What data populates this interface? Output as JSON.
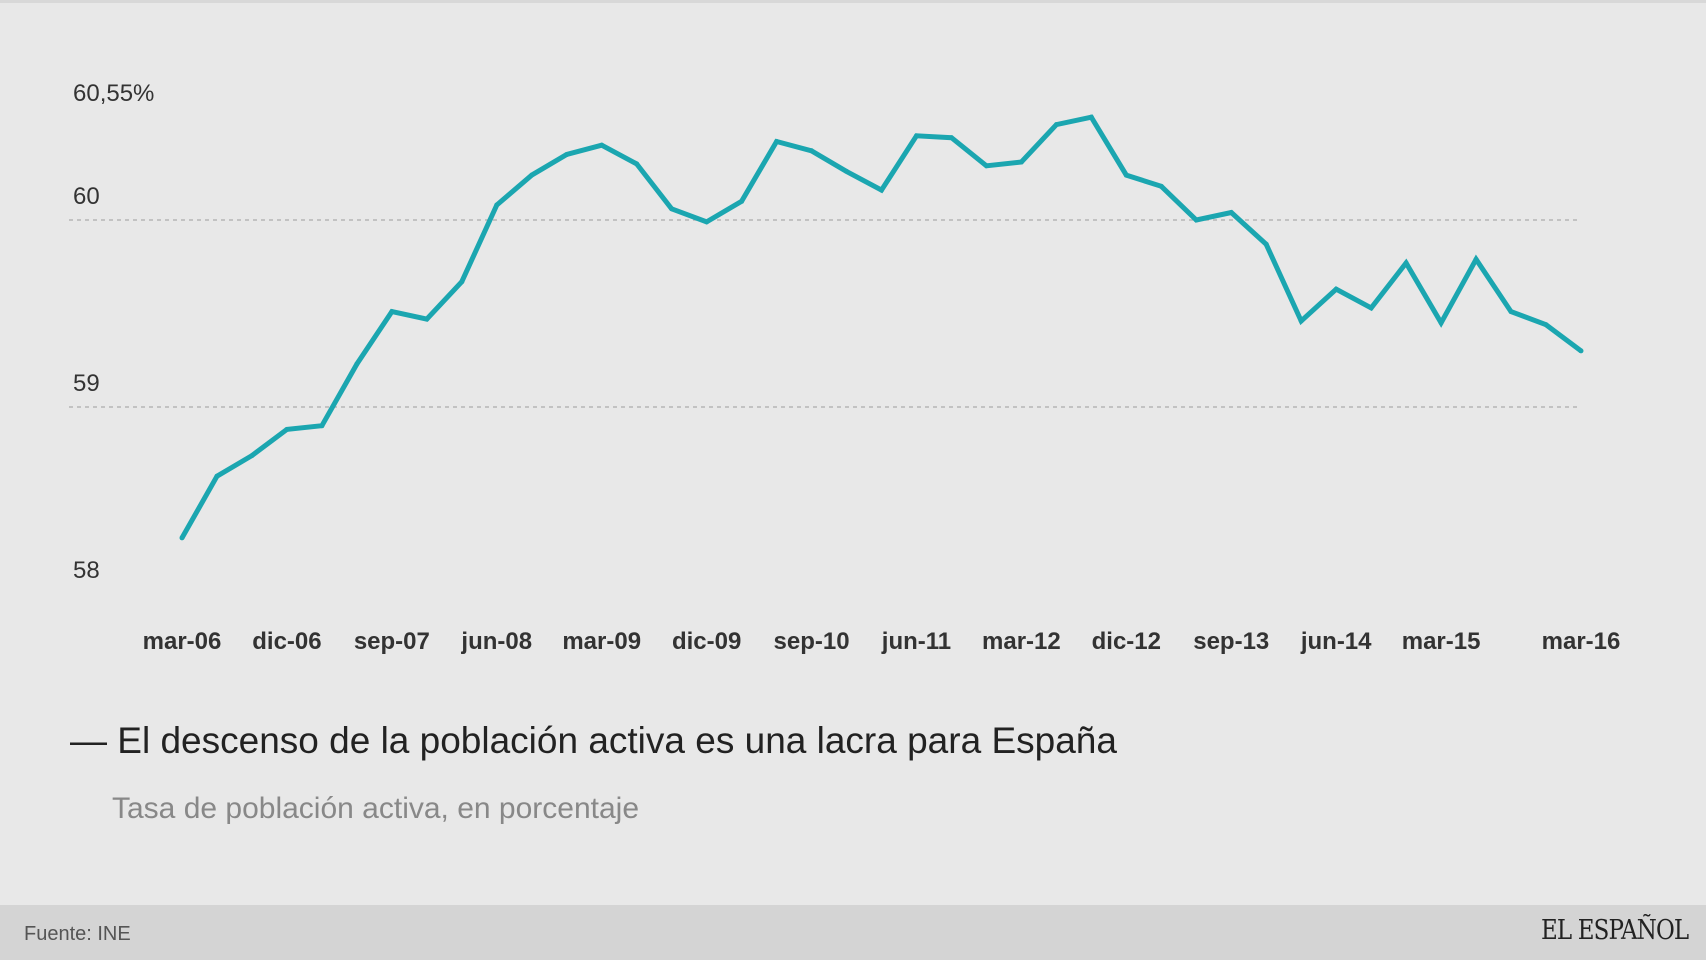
{
  "chart_data": {
    "type": "line",
    "title": "El descenso de la población activa es una lacra para España",
    "subtitle": "Tasa de población activa, en porcentaje",
    "xlabel": "",
    "ylabel": "",
    "ylim": [
      58,
      60.55
    ],
    "y_ticks": [
      {
        "value": 58,
        "label": "58"
      },
      {
        "value": 59,
        "label": "59"
      },
      {
        "value": 60,
        "label": "60"
      },
      {
        "value": 60.55,
        "label": "60,55%"
      }
    ],
    "gridlines": [
      59,
      60
    ],
    "x_tick_labels": [
      {
        "index": 0,
        "label": "mar-06"
      },
      {
        "index": 3,
        "label": "dic-06"
      },
      {
        "index": 6,
        "label": "sep-07"
      },
      {
        "index": 9,
        "label": "jun-08"
      },
      {
        "index": 12,
        "label": "mar-09"
      },
      {
        "index": 15,
        "label": "dic-09"
      },
      {
        "index": 18,
        "label": "sep-10"
      },
      {
        "index": 21,
        "label": "jun-11"
      },
      {
        "index": 24,
        "label": "mar-12"
      },
      {
        "index": 27,
        "label": "dic-12"
      },
      {
        "index": 30,
        "label": "sep-13"
      },
      {
        "index": 33,
        "label": "jun-14"
      },
      {
        "index": 36,
        "label": "mar-15"
      },
      {
        "index": 40,
        "label": "mar-16"
      }
    ],
    "series": [
      {
        "name": "Tasa de población activa",
        "color": "#1ba6b0",
        "values": [
          58.3,
          58.63,
          58.74,
          58.88,
          58.9,
          59.23,
          59.51,
          59.47,
          59.67,
          60.08,
          60.24,
          60.35,
          60.4,
          60.3,
          60.06,
          59.99,
          60.1,
          60.42,
          60.37,
          60.26,
          60.16,
          60.45,
          60.44,
          60.29,
          60.31,
          60.51,
          60.55,
          60.24,
          60.18,
          60.0,
          60.04,
          59.87,
          59.46,
          59.63,
          59.53,
          59.77,
          59.45,
          59.79,
          59.51,
          59.44,
          59.3
        ]
      }
    ]
  },
  "footer": {
    "source": "Fuente: INE",
    "logo": "EL ESPAÑOL"
  }
}
